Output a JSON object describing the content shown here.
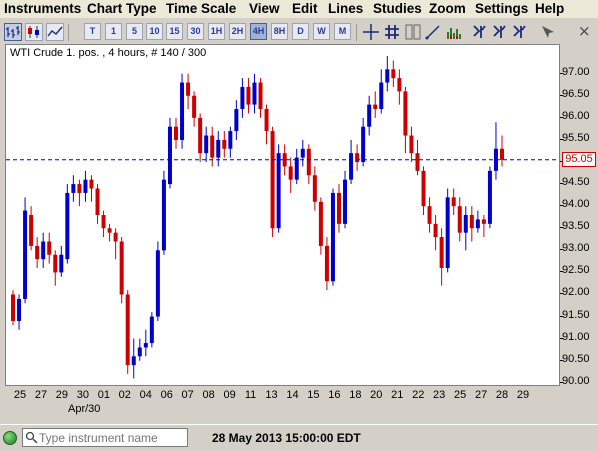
{
  "menu": [
    "Instruments",
    "Chart Type",
    "Time Scale",
    "View",
    "Edit",
    "Lines",
    "Studies",
    "Zoom",
    "Settings",
    "Help"
  ],
  "toolbar": {
    "timeframes": [
      "T",
      "1",
      "5",
      "10",
      "15",
      "30",
      "1H",
      "2H",
      "4H",
      "8H",
      "D",
      "W",
      "M"
    ],
    "selected_timeframe": "4H",
    "close_glyph": "⨯"
  },
  "chart_title": "WTI Crude 1. pos. , 4 hours, # 140 / 300",
  "price_tag": "95.05",
  "timestamp": "28 May 2013 15:00:00 EDT",
  "search": {
    "placeholder": "Type instrument name"
  },
  "colors": {
    "up": "#0000cc",
    "down": "#cc0000",
    "line": "#0000cc",
    "tag": "#cc0000"
  },
  "chart_data": {
    "type": "candlestick",
    "y_ticks": [
      "97.00",
      "96.50",
      "96.00",
      "95.50",
      "95.00",
      "94.50",
      "94.00",
      "93.50",
      "93.00",
      "92.50",
      "92.00",
      "91.50",
      "91.00",
      "90.50",
      "90.00"
    ],
    "ylim": [
      89.95,
      97.65
    ],
    "x_ticks": [
      "25",
      "27",
      "29",
      "30",
      "01",
      "02",
      "04",
      "06",
      "07",
      "08",
      "09",
      "11",
      "13",
      "14",
      "15",
      "16",
      "18",
      "20",
      "21",
      "22",
      "23",
      "25",
      "27",
      "28",
      "29"
    ],
    "x_sublabel": "Apr/30",
    "horizontal_line": 95.05,
    "candles": [
      [
        92.0,
        91.4,
        91.3,
        92.1
      ],
      [
        91.4,
        91.9,
        91.2,
        92.0
      ],
      [
        91.9,
        93.9,
        91.8,
        94.2
      ],
      [
        93.8,
        93.1,
        93.0,
        94.0
      ],
      [
        93.1,
        92.8,
        92.6,
        93.3
      ],
      [
        92.8,
        93.2,
        92.6,
        93.4
      ],
      [
        93.2,
        92.9,
        92.7,
        93.4
      ],
      [
        92.9,
        92.5,
        92.2,
        93.0
      ],
      [
        92.5,
        92.9,
        92.4,
        93.1
      ],
      [
        92.8,
        94.3,
        92.7,
        94.5
      ],
      [
        94.3,
        94.5,
        94.1,
        94.7
      ],
      [
        94.5,
        94.3,
        94.0,
        94.6
      ],
      [
        94.3,
        94.6,
        94.1,
        94.8
      ],
      [
        94.6,
        94.4,
        94.1,
        94.7
      ],
      [
        94.4,
        93.8,
        93.6,
        94.5
      ],
      [
        93.8,
        93.5,
        93.3,
        93.9
      ],
      [
        93.5,
        93.4,
        93.2,
        93.6
      ],
      [
        93.4,
        93.2,
        92.8,
        93.5
      ],
      [
        93.2,
        92.0,
        91.8,
        93.3
      ],
      [
        92.0,
        90.4,
        90.2,
        92.1
      ],
      [
        90.4,
        90.6,
        90.1,
        91.0
      ],
      [
        90.6,
        90.8,
        90.5,
        91.0
      ],
      [
        90.8,
        90.9,
        90.6,
        91.2
      ],
      [
        90.9,
        91.5,
        90.8,
        91.6
      ],
      [
        91.5,
        93.0,
        91.4,
        93.2
      ],
      [
        93.0,
        94.6,
        92.9,
        94.8
      ],
      [
        94.5,
        95.8,
        94.4,
        96.0
      ],
      [
        95.8,
        95.5,
        95.3,
        96.0
      ],
      [
        95.5,
        96.8,
        95.3,
        97.0
      ],
      [
        96.8,
        96.5,
        96.2,
        97.0
      ],
      [
        96.5,
        96.0,
        95.8,
        96.6
      ],
      [
        96.0,
        95.2,
        95.0,
        96.1
      ],
      [
        95.2,
        95.6,
        95.0,
        95.8
      ],
      [
        95.6,
        95.1,
        94.9,
        95.8
      ],
      [
        95.1,
        95.5,
        94.9,
        95.7
      ],
      [
        95.5,
        95.3,
        95.1,
        95.7
      ],
      [
        95.3,
        95.7,
        95.1,
        95.8
      ],
      [
        95.7,
        96.2,
        95.5,
        96.4
      ],
      [
        96.2,
        96.7,
        96.0,
        96.9
      ],
      [
        96.7,
        96.3,
        96.1,
        96.9
      ],
      [
        96.3,
        96.8,
        96.1,
        97.0
      ],
      [
        96.8,
        96.2,
        96.0,
        96.9
      ],
      [
        96.2,
        95.7,
        95.4,
        96.3
      ],
      [
        95.7,
        93.5,
        93.3,
        95.8
      ],
      [
        93.5,
        95.2,
        93.4,
        95.4
      ],
      [
        95.2,
        94.9,
        94.7,
        95.4
      ],
      [
        94.9,
        94.6,
        94.3,
        95.1
      ],
      [
        94.6,
        95.1,
        94.5,
        95.3
      ],
      [
        95.1,
        95.3,
        94.9,
        95.5
      ],
      [
        95.3,
        94.7,
        94.5,
        95.4
      ],
      [
        94.7,
        94.1,
        93.9,
        94.9
      ],
      [
        94.1,
        93.1,
        92.9,
        94.2
      ],
      [
        93.1,
        92.3,
        92.1,
        93.3
      ],
      [
        92.3,
        94.3,
        92.2,
        94.4
      ],
      [
        94.3,
        93.6,
        93.4,
        94.5
      ],
      [
        93.6,
        94.6,
        93.5,
        94.8
      ],
      [
        94.6,
        95.2,
        94.5,
        95.5
      ],
      [
        95.2,
        95.0,
        94.8,
        95.4
      ],
      [
        95.0,
        95.8,
        94.9,
        96.0
      ],
      [
        95.8,
        96.3,
        95.6,
        96.5
      ],
      [
        96.3,
        96.2,
        96.0,
        96.6
      ],
      [
        96.2,
        96.8,
        96.1,
        97.1
      ],
      [
        96.8,
        97.1,
        96.6,
        97.4
      ],
      [
        97.1,
        96.9,
        96.7,
        97.3
      ],
      [
        96.9,
        96.6,
        96.3,
        97.1
      ],
      [
        96.6,
        95.6,
        95.2,
        96.7
      ],
      [
        95.6,
        95.2,
        95.0,
        95.8
      ],
      [
        95.2,
        94.8,
        94.7,
        95.5
      ],
      [
        94.8,
        94.0,
        93.8,
        94.9
      ],
      [
        94.0,
        93.6,
        93.4,
        94.2
      ],
      [
        93.6,
        93.3,
        93.0,
        93.8
      ],
      [
        93.3,
        92.6,
        92.2,
        93.5
      ],
      [
        92.6,
        94.2,
        92.5,
        94.4
      ],
      [
        94.2,
        94.0,
        93.8,
        94.4
      ],
      [
        94.0,
        93.4,
        93.2,
        94.2
      ],
      [
        93.4,
        93.8,
        93.0,
        94.0
      ],
      [
        93.8,
        93.5,
        93.2,
        94.0
      ],
      [
        93.5,
        93.7,
        93.4,
        93.9
      ],
      [
        93.7,
        93.6,
        93.3,
        93.8
      ],
      [
        93.6,
        94.8,
        93.5,
        94.9
      ],
      [
        94.8,
        95.3,
        94.6,
        95.9
      ],
      [
        95.3,
        95.05,
        94.9,
        95.6
      ]
    ]
  }
}
